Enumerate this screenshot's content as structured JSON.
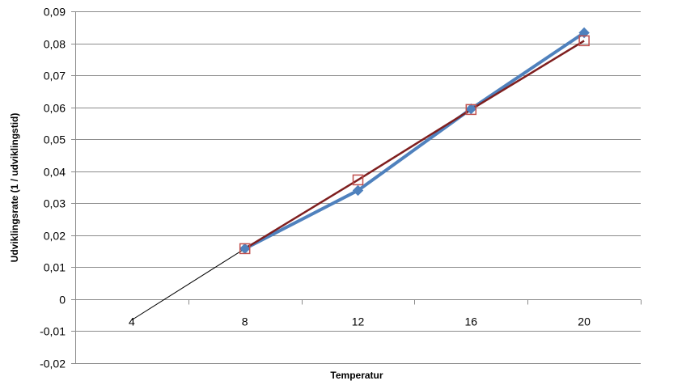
{
  "chart_data": {
    "type": "line",
    "title": "",
    "xlabel": "Temperatur",
    "ylabel": "Udviklingsrate (1 / udviklingstid)",
    "categories": [
      "4",
      "8",
      "12",
      "16",
      "20"
    ],
    "x": [
      4,
      8,
      12,
      16,
      20
    ],
    "ylim": [
      -0.02,
      0.09
    ],
    "y_ticks": [
      "-0,02",
      "-0,01",
      "0",
      "0,01",
      "0,02",
      "0,03",
      "0,04",
      "0,05",
      "0,06",
      "0,07",
      "0,08",
      "0,09"
    ],
    "grid": true,
    "legend": "none",
    "series": [
      {
        "values": [
          null,
          0.0158,
          0.034,
          0.0595,
          0.0833
        ],
        "color": "#4F81BD",
        "marker": "diamond"
      },
      {
        "values": [
          null,
          0.0158,
          0.0373,
          0.0593,
          0.0808
        ],
        "color": "#7F1F1F",
        "marker": "square-open",
        "marker_color": "#C0504D"
      },
      {
        "values": [
          -0.0065,
          0.0158
        ],
        "x": [
          4,
          8
        ],
        "color": "#000000",
        "marker": "none"
      }
    ]
  }
}
